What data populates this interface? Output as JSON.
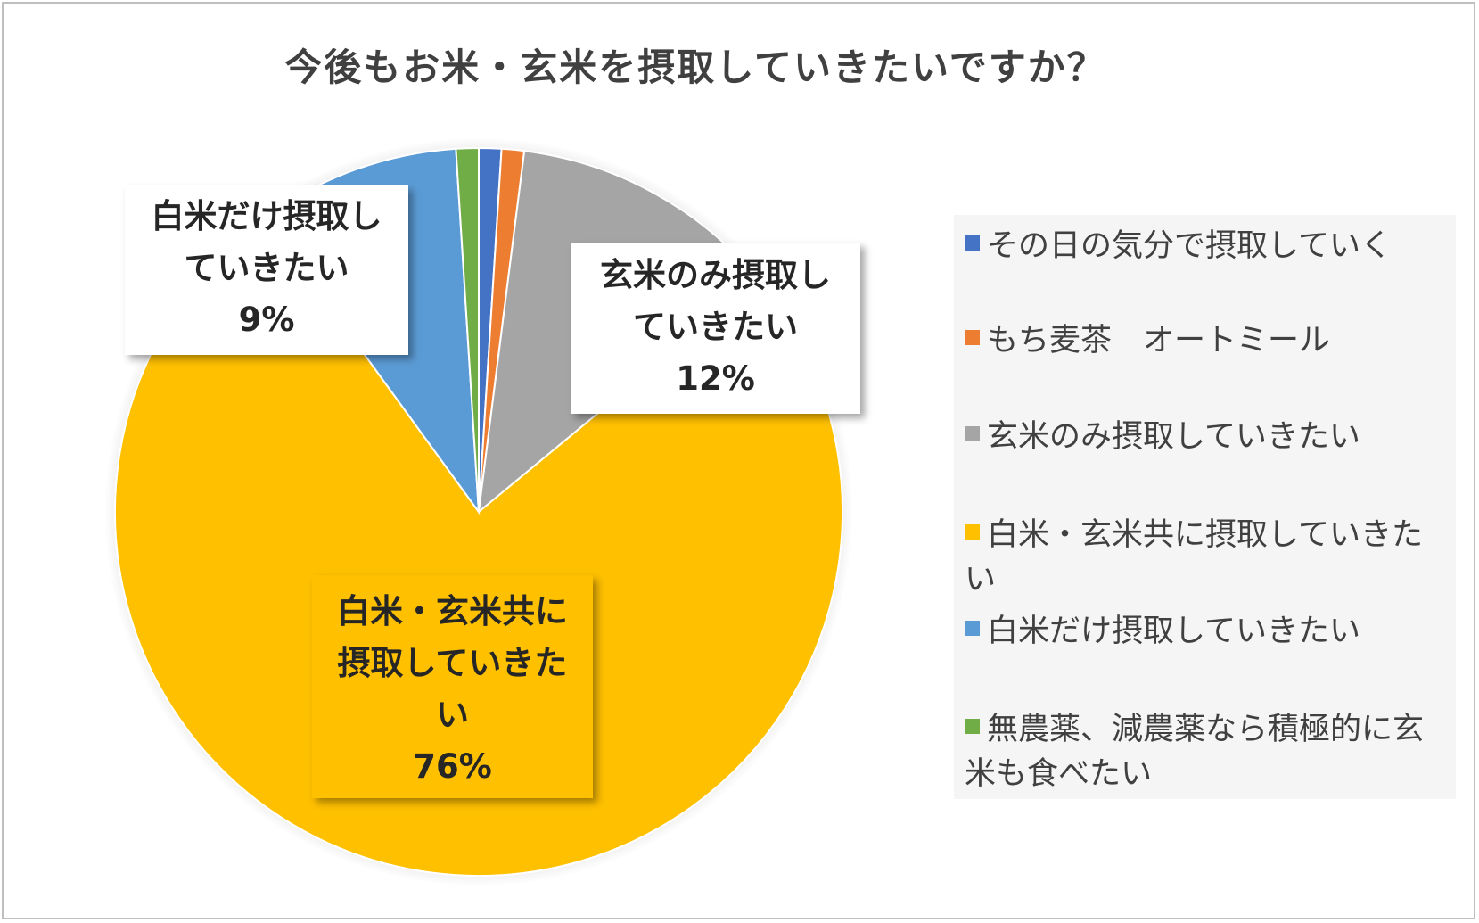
{
  "chart_data": {
    "type": "pie",
    "title": "今後もお米・玄米を摂取していきたいですか？",
    "series": [
      {
        "label": "その日の気分で摂取していく",
        "value": 1,
        "color": "#4472c4"
      },
      {
        "label": "もち麦茶　オートミール",
        "value": 1,
        "color": "#ed7d31"
      },
      {
        "label": "玄米のみ摂取していきたい",
        "value": 12,
        "color": "#a5a5a5"
      },
      {
        "label": "白米・玄米共に摂取していきたい",
        "value": 76,
        "color": "#ffc000"
      },
      {
        "label": "白米だけ摂取していきたい",
        "value": 9,
        "color": "#5b9bd5"
      },
      {
        "label": "無農薬、減農薬なら積極的に玄米も食べたい",
        "value": 1,
        "color": "#70ad47"
      }
    ],
    "data_labels": [
      {
        "category": "玄米のみ摂取していきたい",
        "percent": "12%"
      },
      {
        "category": "白米・玄米共に摂取していきたい",
        "percent": "76%"
      },
      {
        "category": "白米だけ摂取していきたい",
        "percent": "9%"
      }
    ],
    "legend_position": "right"
  }
}
